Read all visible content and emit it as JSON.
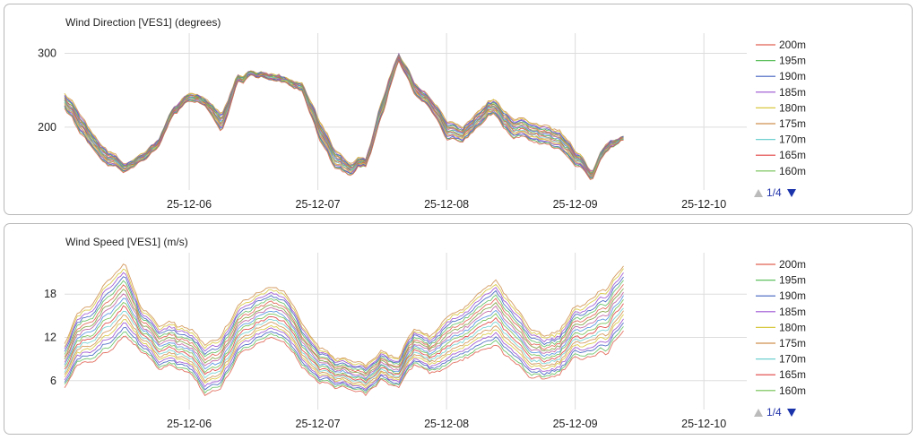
{
  "chart_data": [
    {
      "type": "line",
      "title": "Wind Direction [VES1] (degrees)",
      "x_tick_labels": [
        "25-12-06",
        "25-12-07",
        "25-12-08",
        "25-12-09",
        "25-12-10"
      ],
      "x_ticks": [
        "2025-12-06",
        "2025-12-07",
        "2025-12-08",
        "2025-12-09",
        "2025-12-10"
      ],
      "xlim": [
        "2025-12-05 00:45",
        "2025-12-10 08:00"
      ],
      "ylim": [
        115,
        320
      ],
      "y_ticks": [
        200,
        300
      ],
      "grid": true,
      "legend_position": "right",
      "legend_page": "1/4",
      "series": [
        {
          "name": "200m",
          "color": "#e06050"
        },
        {
          "name": "195m",
          "color": "#60c060"
        },
        {
          "name": "190m",
          "color": "#4060c0"
        },
        {
          "name": "185m",
          "color": "#9a50d0"
        },
        {
          "name": "180m",
          "color": "#d8c840"
        },
        {
          "name": "175m",
          "color": "#d09050"
        },
        {
          "name": "170m",
          "color": "#70d0d0"
        },
        {
          "name": "165m",
          "color": "#e04040"
        },
        {
          "name": "160m",
          "color": "#70c050"
        }
      ],
      "x": [
        "2025-12-05 00:45",
        "2025-12-05 03:00",
        "2025-12-05 06:00",
        "2025-12-05 09:00",
        "2025-12-05 12:00",
        "2025-12-05 15:00",
        "2025-12-05 18:00",
        "2025-12-05 21:00",
        "2025-12-06 00:00",
        "2025-12-06 03:00",
        "2025-12-06 06:00",
        "2025-12-06 09:00",
        "2025-12-06 12:00",
        "2025-12-06 15:00",
        "2025-12-06 18:00",
        "2025-12-06 21:00",
        "2025-12-07 00:00",
        "2025-12-07 03:00",
        "2025-12-07 06:00",
        "2025-12-07 09:00",
        "2025-12-07 12:00",
        "2025-12-07 15:00",
        "2025-12-07 18:00",
        "2025-12-07 21:00",
        "2025-12-08 00:00",
        "2025-12-08 03:00",
        "2025-12-08 06:00",
        "2025-12-08 09:00",
        "2025-12-08 12:00",
        "2025-12-08 15:00",
        "2025-12-08 18:00",
        "2025-12-08 21:00",
        "2025-12-09 00:00",
        "2025-12-09 03:00",
        "2025-12-09 06:00",
        "2025-12-09 09:00"
      ],
      "values_top_series": [
        250,
        225,
        190,
        165,
        150,
        165,
        180,
        225,
        245,
        240,
        215,
        270,
        275,
        270,
        265,
        260,
        215,
        170,
        150,
        160,
        235,
        300,
        260,
        240,
        210,
        200,
        225,
        240,
        215,
        210,
        205,
        195,
        170,
        140,
        180,
        185
      ],
      "values_bottom_series": [
        230,
        200,
        170,
        145,
        140,
        155,
        170,
        215,
        235,
        230,
        190,
        260,
        270,
        262,
        258,
        250,
        190,
        145,
        135,
        150,
        215,
        290,
        245,
        225,
        185,
        180,
        205,
        220,
        190,
        185,
        180,
        170,
        150,
        130,
        170,
        180
      ]
    },
    {
      "type": "line",
      "title": "Wind Speed [VES1] (m/s)",
      "x_tick_labels": [
        "25-12-06",
        "25-12-07",
        "25-12-08",
        "25-12-09",
        "25-12-10"
      ],
      "x_ticks": [
        "2025-12-06",
        "2025-12-07",
        "2025-12-08",
        "2025-12-09",
        "2025-12-10"
      ],
      "xlim": [
        "2025-12-05 00:45",
        "2025-12-10 08:00"
      ],
      "ylim": [
        2,
        23
      ],
      "y_ticks": [
        6,
        12,
        18
      ],
      "grid": true,
      "legend_position": "right",
      "legend_page": "1/4",
      "series": [
        {
          "name": "200m",
          "color": "#e06050"
        },
        {
          "name": "195m",
          "color": "#60c060"
        },
        {
          "name": "190m",
          "color": "#4060c0"
        },
        {
          "name": "185m",
          "color": "#9a50d0"
        },
        {
          "name": "180m",
          "color": "#d8c840"
        },
        {
          "name": "175m",
          "color": "#d09050"
        },
        {
          "name": "170m",
          "color": "#70d0d0"
        },
        {
          "name": "165m",
          "color": "#e04040"
        },
        {
          "name": "160m",
          "color": "#70c050"
        }
      ],
      "x": [
        "2025-12-05 00:45",
        "2025-12-05 03:00",
        "2025-12-05 06:00",
        "2025-12-05 09:00",
        "2025-12-05 12:00",
        "2025-12-05 15:00",
        "2025-12-05 18:00",
        "2025-12-05 21:00",
        "2025-12-06 00:00",
        "2025-12-06 03:00",
        "2025-12-06 06:00",
        "2025-12-06 09:00",
        "2025-12-06 12:00",
        "2025-12-06 15:00",
        "2025-12-06 18:00",
        "2025-12-06 21:00",
        "2025-12-07 00:00",
        "2025-12-07 03:00",
        "2025-12-07 06:00",
        "2025-12-07 09:00",
        "2025-12-07 12:00",
        "2025-12-07 15:00",
        "2025-12-07 18:00",
        "2025-12-07 21:00",
        "2025-12-08 00:00",
        "2025-12-08 03:00",
        "2025-12-08 06:00",
        "2025-12-08 09:00",
        "2025-12-08 12:00",
        "2025-12-08 15:00",
        "2025-12-08 18:00",
        "2025-12-08 21:00",
        "2025-12-09 00:00",
        "2025-12-09 03:00",
        "2025-12-09 06:00",
        "2025-12-09 09:00"
      ],
      "values_top_series": [
        11,
        15,
        17,
        20,
        22,
        16,
        14,
        14,
        13,
        11,
        12,
        16,
        18,
        19,
        18,
        14,
        11,
        9,
        9,
        8,
        10,
        9,
        13,
        12,
        15,
        16,
        18,
        20,
        17,
        14,
        12,
        13,
        16,
        17,
        19,
        22
      ],
      "values_bottom_series": [
        5,
        8,
        9,
        10,
        12,
        10,
        8,
        8,
        7,
        4,
        5,
        9,
        11,
        12,
        11,
        8,
        6,
        5,
        5,
        4,
        6,
        5,
        8,
        7,
        8,
        9,
        10,
        11,
        9,
        7,
        6,
        7,
        9,
        9,
        10,
        13
      ]
    }
  ]
}
